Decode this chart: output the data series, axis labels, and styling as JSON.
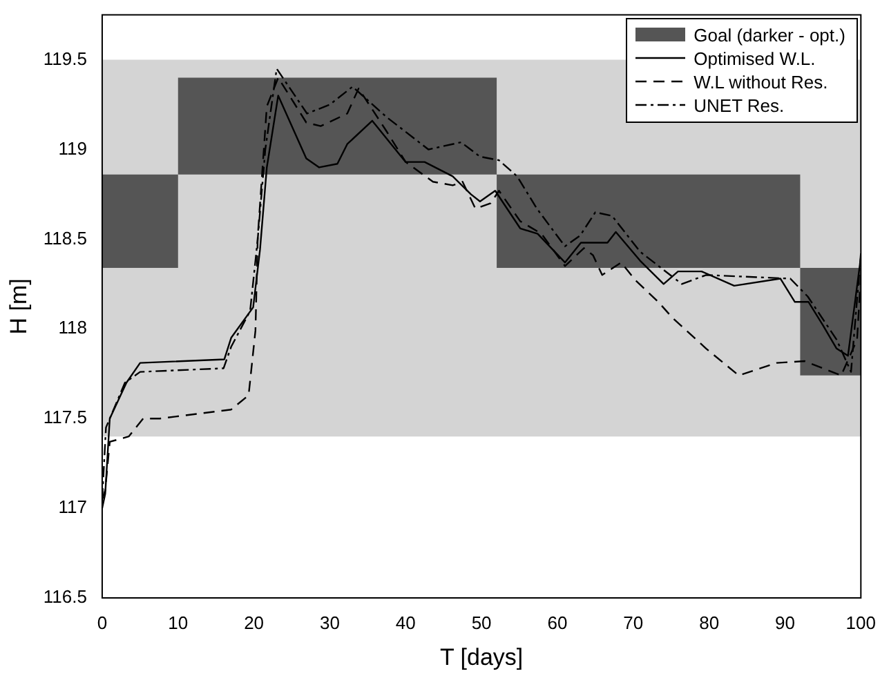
{
  "chart_data": {
    "type": "line",
    "xlabel": "T [days]",
    "ylabel": "H [m]",
    "xlim": [
      0,
      100
    ],
    "xticks": [
      0,
      10,
      20,
      30,
      40,
      50,
      60,
      70,
      80,
      90,
      100
    ],
    "ylim": [
      116.5,
      119.75
    ],
    "yticks": [
      116.5,
      117,
      117.5,
      118,
      118.5,
      119,
      119.5
    ],
    "grid": false,
    "legend": "top right",
    "marker": "none",
    "series": [
      {
        "color": "#d4d4d4",
        "x": [
          0,
          100
        ],
        "values": [
          null,
          null
        ],
        "lower": [
          117.4,
          117.4
        ],
        "upper": [
          119.5,
          119.5
        ]
      },
      {
        "name": "Goal (darker - opt.)",
        "color": "#555555",
        "x": [
          0,
          10,
          10,
          52,
          52,
          92,
          92,
          100
        ],
        "values": [
          null,
          null,
          null,
          null,
          null,
          null,
          null,
          null
        ],
        "lower": [
          118.34,
          118.34,
          118.86,
          118.86,
          118.34,
          118.34,
          117.74,
          117.74
        ],
        "upper": [
          118.86,
          118.86,
          119.4,
          119.4,
          118.86,
          118.86,
          118.34,
          118.34
        ]
      },
      {
        "name": "Optimised W.L.",
        "color": "#000000",
        "line_style": "solid",
        "x": [
          0,
          0.4,
          1,
          3.2,
          5,
          16.1,
          17,
          19.9,
          20.8,
          21.7,
          23.2,
          26.9,
          28.6,
          31,
          32.3,
          35.6,
          40,
          42.5,
          46.2,
          48.6,
          49.8,
          51.8,
          55.1,
          57.4,
          61,
          63.1,
          66.6,
          67.7,
          70.9,
          74,
          75.9,
          79,
          83.3,
          89.4,
          91.3,
          93.1,
          95,
          96.8,
          98.3,
          100
        ],
        "values": [
          117.0,
          117.08,
          117.5,
          117.7,
          117.81,
          117.83,
          117.95,
          118.12,
          118.44,
          118.9,
          119.3,
          118.95,
          118.9,
          118.92,
          119.03,
          119.16,
          118.93,
          118.93,
          118.85,
          118.75,
          118.71,
          118.77,
          118.56,
          118.53,
          118.37,
          118.48,
          118.48,
          118.54,
          118.38,
          118.25,
          118.32,
          118.32,
          118.24,
          118.28,
          118.15,
          118.15,
          118.02,
          117.89,
          117.85,
          118.4
        ]
      },
      {
        "name": "W.L without Res.",
        "color": "#000000",
        "line_style": "dashed",
        "x": [
          0,
          0.4,
          1,
          3.5,
          5.4,
          7.6,
          17,
          19.3,
          20.2,
          20.5,
          21.7,
          23.2,
          26.9,
          28.8,
          32.3,
          33.8,
          37.5,
          40,
          43.6,
          46.2,
          47.5,
          49.2,
          51.2,
          52.3,
          55.1,
          57.9,
          61,
          63.5,
          64.7,
          65.9,
          68.4,
          70.3,
          73.3,
          75.2,
          79.6,
          83.9,
          88.9,
          92.6,
          97.4,
          99.5,
          100
        ],
        "values": [
          117.05,
          117.1,
          117.37,
          117.4,
          117.5,
          117.5,
          117.55,
          117.63,
          117.99,
          118.51,
          119.24,
          119.4,
          119.15,
          119.13,
          119.2,
          119.34,
          119.1,
          118.93,
          118.82,
          118.8,
          118.82,
          118.67,
          118.7,
          118.77,
          118.6,
          118.53,
          118.35,
          118.45,
          118.41,
          118.3,
          118.37,
          118.27,
          118.15,
          118.06,
          117.89,
          117.74,
          117.81,
          117.82,
          117.74,
          117.94,
          118.3
        ]
      },
      {
        "name": "UNET Res.",
        "color": "#000000",
        "line_style": "dashdot",
        "x": [
          0,
          0.5,
          3,
          5,
          16,
          17,
          19.5,
          20.5,
          21.5,
          23,
          27,
          30,
          33,
          37.5,
          43,
          47.3,
          49.8,
          52.3,
          54.7,
          57.3,
          61,
          63,
          65,
          67.2,
          70.9,
          76.4,
          79.6,
          90.7,
          93,
          96.8,
          98.7,
          100
        ],
        "values": [
          117.05,
          117.45,
          117.7,
          117.76,
          117.78,
          117.9,
          118.1,
          118.5,
          119.0,
          119.45,
          119.2,
          119.25,
          119.35,
          119.18,
          119.0,
          119.04,
          118.96,
          118.94,
          118.85,
          118.67,
          118.46,
          118.52,
          118.65,
          118.63,
          118.43,
          118.25,
          118.3,
          118.28,
          118.18,
          117.94,
          117.76,
          118.42
        ]
      }
    ]
  }
}
